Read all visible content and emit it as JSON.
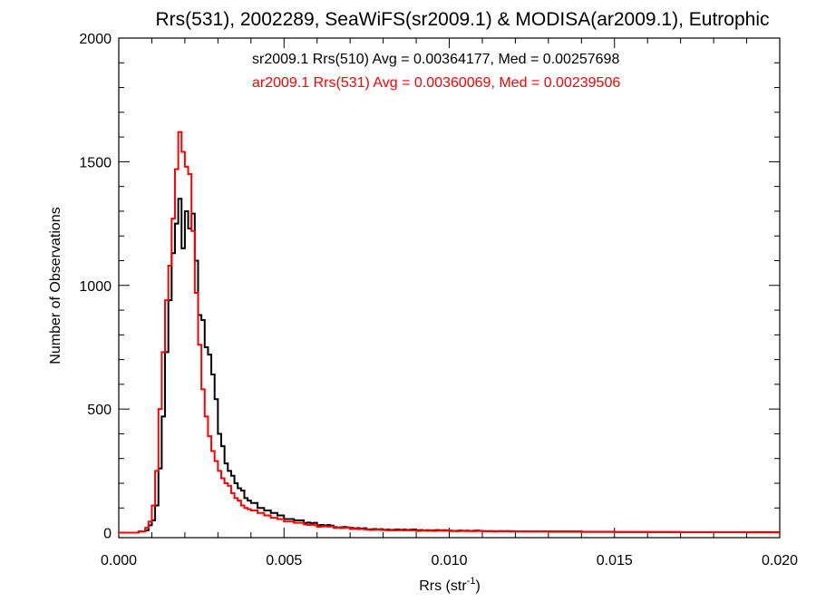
{
  "chart_data": {
    "type": "histogram",
    "title": "Rrs(531), 2002289, SeaWiFS(sr2009.1) & MODISA(ar2009.1), Eutrophic",
    "xlabel": {
      "base": "Rrs (str",
      "sup": "-1",
      "tail": ")"
    },
    "ylabel": "Number of Observations",
    "xlim": [
      0.0,
      0.02
    ],
    "ylim": [
      -20,
      2000
    ],
    "xticks": [
      0.0,
      0.005,
      0.01,
      0.015,
      0.02
    ],
    "xtick_labels": [
      "0.000",
      "0.005",
      "0.010",
      "0.015",
      "0.020"
    ],
    "yticks": [
      0,
      500,
      1000,
      1500,
      2000
    ],
    "ytick_labels": [
      "0",
      "500",
      "1000",
      "1500",
      "2000"
    ],
    "x_minor_step": 0.001,
    "y_minor_step": 100,
    "grid": false,
    "legend_placement": "top-center",
    "bin_width": 0.0001,
    "series": [
      {
        "name": "sr2009.1 Rrs(510) Avg = 0.00364177, Med = 0.00257698",
        "color": "#000000",
        "x": [
          0.0,
          0.0006,
          0.0008,
          0.0009,
          0.001,
          0.0011,
          0.0012,
          0.0013,
          0.0014,
          0.0015,
          0.0016,
          0.0017,
          0.0018,
          0.0019,
          0.002,
          0.0021,
          0.0022,
          0.0023,
          0.0024,
          0.0025,
          0.0026,
          0.0027,
          0.0028,
          0.0029,
          0.003,
          0.0031,
          0.0032,
          0.0033,
          0.0034,
          0.0035,
          0.0036,
          0.0037,
          0.0038,
          0.0039,
          0.004,
          0.0042,
          0.0044,
          0.0046,
          0.0048,
          0.005,
          0.0053,
          0.0056,
          0.006,
          0.0065,
          0.007,
          0.0075,
          0.008,
          0.009,
          0.01,
          0.011,
          0.012,
          0.013,
          0.014,
          0.015,
          0.016,
          0.017,
          0.018,
          0.019,
          0.02
        ],
        "values": [
          0,
          5,
          10,
          30,
          50,
          110,
          260,
          470,
          730,
          940,
          1130,
          1250,
          1350,
          1150,
          1300,
          1230,
          1290,
          1100,
          880,
          860,
          750,
          720,
          640,
          540,
          400,
          350,
          280,
          250,
          230,
          200,
          180,
          170,
          140,
          130,
          120,
          100,
          90,
          80,
          70,
          55,
          50,
          40,
          30,
          22,
          18,
          14,
          12,
          10,
          8,
          6,
          5,
          5,
          4,
          3,
          3,
          2,
          2,
          2,
          1
        ]
      },
      {
        "name": "ar2009.1 Rrs(531) Avg = 0.00360069, Med = 0.00239506",
        "color": "#ff0000",
        "x": [
          0.0,
          0.0006,
          0.0008,
          0.0009,
          0.001,
          0.0011,
          0.0012,
          0.0013,
          0.0014,
          0.0015,
          0.0016,
          0.0017,
          0.0018,
          0.0019,
          0.002,
          0.0021,
          0.0022,
          0.0023,
          0.0024,
          0.0025,
          0.0026,
          0.0027,
          0.0028,
          0.0029,
          0.003,
          0.0031,
          0.0032,
          0.0033,
          0.0034,
          0.0035,
          0.0036,
          0.0037,
          0.0038,
          0.0039,
          0.004,
          0.0042,
          0.0044,
          0.0046,
          0.0048,
          0.005,
          0.0053,
          0.0056,
          0.006,
          0.0065,
          0.007,
          0.0075,
          0.008,
          0.009,
          0.01,
          0.011,
          0.012,
          0.013,
          0.014,
          0.015,
          0.016,
          0.017,
          0.018,
          0.019,
          0.02
        ],
        "values": [
          0,
          5,
          20,
          45,
          110,
          250,
          500,
          730,
          940,
          1080,
          1270,
          1470,
          1620,
          1540,
          1480,
          1450,
          1220,
          970,
          760,
          580,
          470,
          390,
          330,
          290,
          250,
          220,
          200,
          190,
          160,
          140,
          130,
          110,
          100,
          95,
          90,
          80,
          70,
          60,
          55,
          45,
          40,
          32,
          25,
          20,
          15,
          12,
          10,
          8,
          7,
          6,
          5,
          4,
          3,
          3,
          2,
          2,
          2,
          1,
          1
        ]
      }
    ]
  }
}
